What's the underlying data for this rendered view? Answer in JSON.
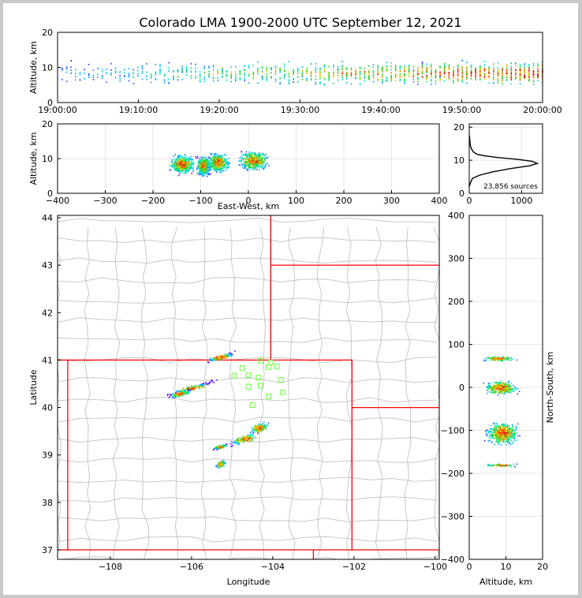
{
  "title": "Colorado LMA 1900-2000 UTC September 12, 2021",
  "colors": {
    "density": [
      "#5a00ff",
      "#2a55ff",
      "#00b4ff",
      "#00e5c0",
      "#28d228",
      "#d2d200",
      "#ff8c00",
      "#ff2a00",
      "#e00000"
    ],
    "state_lines": "#ff0000",
    "county_lines": "#c8c8c8",
    "stations": "#66ff33",
    "profile_line": "#000000"
  },
  "chart_data": [
    {
      "id": "time_height",
      "type": "heatmap",
      "xlabel": "",
      "ylabel": "Altitude, km",
      "ylim": [
        0,
        20
      ],
      "xticks": [
        "19:00:00",
        "19:10:00",
        "19:20:00",
        "19:30:00",
        "19:40:00",
        "19:50:00",
        "20:00:00"
      ],
      "yticks": [
        0,
        10,
        20
      ],
      "xrange_minutes": [
        0,
        60
      ],
      "band": {
        "altitude_center_km": 8.5,
        "altitude_spread_km": 2.5,
        "cells_per_minute": [
          4,
          5,
          6,
          7,
          8,
          9,
          10,
          12,
          14,
          16,
          18,
          20
        ]
      }
    },
    {
      "id": "east_west_altitude",
      "type": "heatmap",
      "xlabel": "East-West, km",
      "ylabel": "Altitude, km",
      "xlim": [
        -400,
        400
      ],
      "ylim": [
        0,
        20
      ],
      "xticks": [
        -400,
        -300,
        -200,
        -100,
        0,
        100,
        200,
        300,
        400
      ],
      "yticks": [
        0,
        10,
        20
      ],
      "clusters": [
        {
          "x_km": -140,
          "altitude_km": 8.5,
          "width_km": 35
        },
        {
          "x_km": -95,
          "altitude_km": 8.0,
          "width_km": 20
        },
        {
          "x_km": -65,
          "altitude_km": 9.0,
          "width_km": 30
        },
        {
          "x_km": 10,
          "altitude_km": 9.5,
          "width_km": 40
        }
      ]
    },
    {
      "id": "altitude_histogram",
      "type": "line",
      "xlim": [
        0,
        1400
      ],
      "ylim": [
        0,
        21
      ],
      "xticks": [
        0,
        1000
      ],
      "yticks": [
        0,
        10,
        20
      ],
      "annotation": "23,856 sources",
      "x": [
        0,
        20,
        60,
        200,
        450,
        800,
        1150,
        1300,
        1200,
        900,
        550,
        300,
        150,
        80,
        40,
        20,
        10,
        5
      ],
      "y": [
        2,
        3,
        4.5,
        5.5,
        6.5,
        7.5,
        8.3,
        9.0,
        9.7,
        10.3,
        10.8,
        11.3,
        11.8,
        12.5,
        13.5,
        14.5,
        16,
        17.5
      ]
    },
    {
      "id": "plan_view",
      "type": "scatter",
      "xlabel": "Longitude",
      "ylabel": "Latitude",
      "xlim": [
        -109.3,
        -99.9
      ],
      "ylim": [
        36.8,
        44.05
      ],
      "xticks": [
        -108,
        -106,
        -104,
        -102,
        -100
      ],
      "yticks": [
        37,
        38,
        39,
        40,
        41,
        42,
        43,
        44
      ],
      "stations": [
        {
          "lon": -104.3,
          "lat": 40.98
        },
        {
          "lon": -104.05,
          "lat": 40.95
        },
        {
          "lon": -104.1,
          "lat": 40.85
        },
        {
          "lon": -103.9,
          "lat": 40.87
        },
        {
          "lon": -104.75,
          "lat": 40.83
        },
        {
          "lon": -104.95,
          "lat": 40.67
        },
        {
          "lon": -104.6,
          "lat": 40.68
        },
        {
          "lon": -104.35,
          "lat": 40.63
        },
        {
          "lon": -103.8,
          "lat": 40.58
        },
        {
          "lon": -104.6,
          "lat": 40.44
        },
        {
          "lon": -104.3,
          "lat": 40.46
        },
        {
          "lon": -103.75,
          "lat": 40.32
        },
        {
          "lon": -104.1,
          "lat": 40.23
        },
        {
          "lon": -104.5,
          "lat": 40.05
        }
      ],
      "clusters": [
        {
          "lon": -105.3,
          "lat": 41.07,
          "dlon": 0.3,
          "dlat": 0.05
        },
        {
          "lon": -106.0,
          "lat": 40.42,
          "dlon": 0.5,
          "dlat": 0.05
        },
        {
          "lon": -106.3,
          "lat": 40.3,
          "dlon": 0.25,
          "dlat": 0.05
        },
        {
          "lon": -104.35,
          "lat": 39.58,
          "dlon": 0.2,
          "dlat": 0.08
        },
        {
          "lon": -104.7,
          "lat": 39.35,
          "dlon": 0.3,
          "dlat": 0.07
        },
        {
          "lon": -105.3,
          "lat": 39.18,
          "dlon": 0.15,
          "dlat": 0.03
        },
        {
          "lon": -105.3,
          "lat": 38.82,
          "dlon": 0.1,
          "dlat": 0.06
        }
      ]
    },
    {
      "id": "north_south_altitude",
      "type": "heatmap",
      "xlabel": "Altitude, km",
      "ylabel": "North-South, km",
      "xlim": [
        0,
        20
      ],
      "ylim": [
        -400,
        400
      ],
      "xticks": [
        0,
        10,
        20
      ],
      "yticks": [
        -400,
        -300,
        -200,
        -100,
        0,
        100,
        200,
        300,
        400
      ],
      "clusters": [
        {
          "ns_km": 68,
          "altitude_km": 8.0,
          "height_km": 8
        },
        {
          "ns_km": 0,
          "altitude_km": 8.5,
          "height_km": 22
        },
        {
          "ns_km": -105,
          "altitude_km": 9.0,
          "height_km": 35
        },
        {
          "ns_km": -180,
          "altitude_km": 8.5,
          "height_km": 5
        }
      ]
    }
  ]
}
